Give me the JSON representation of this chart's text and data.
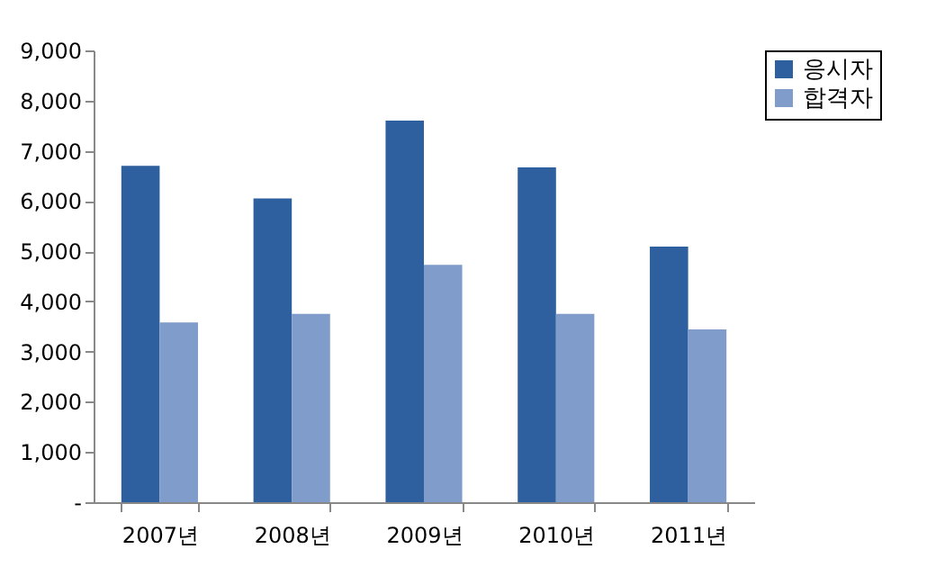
{
  "chart_data": {
    "type": "bar",
    "categories": [
      "2007년",
      "2008년",
      "2009년",
      "2010년",
      "2011년"
    ],
    "series": [
      {
        "name": "응시자",
        "color": "#2e5f9e",
        "values": [
          6700,
          6050,
          7600,
          6670,
          5090
        ]
      },
      {
        "name": "합격자",
        "color": "#7f9ccb",
        "values": [
          3580,
          3750,
          4730,
          3750,
          3440
        ]
      }
    ],
    "ylim": [
      0,
      9000
    ],
    "yticks": [
      {
        "value": 0,
        "label": "-"
      },
      {
        "value": 1000,
        "label": "1,000"
      },
      {
        "value": 2000,
        "label": "2,000"
      },
      {
        "value": 3000,
        "label": "3,000"
      },
      {
        "value": 4000,
        "label": "4,000"
      },
      {
        "value": 5000,
        "label": "5,000"
      },
      {
        "value": 6000,
        "label": "6,000"
      },
      {
        "value": 7000,
        "label": "7,000"
      },
      {
        "value": 8000,
        "label": "8,000"
      },
      {
        "value": 9000,
        "label": "9,000"
      }
    ],
    "grid": false,
    "legend": "right"
  }
}
